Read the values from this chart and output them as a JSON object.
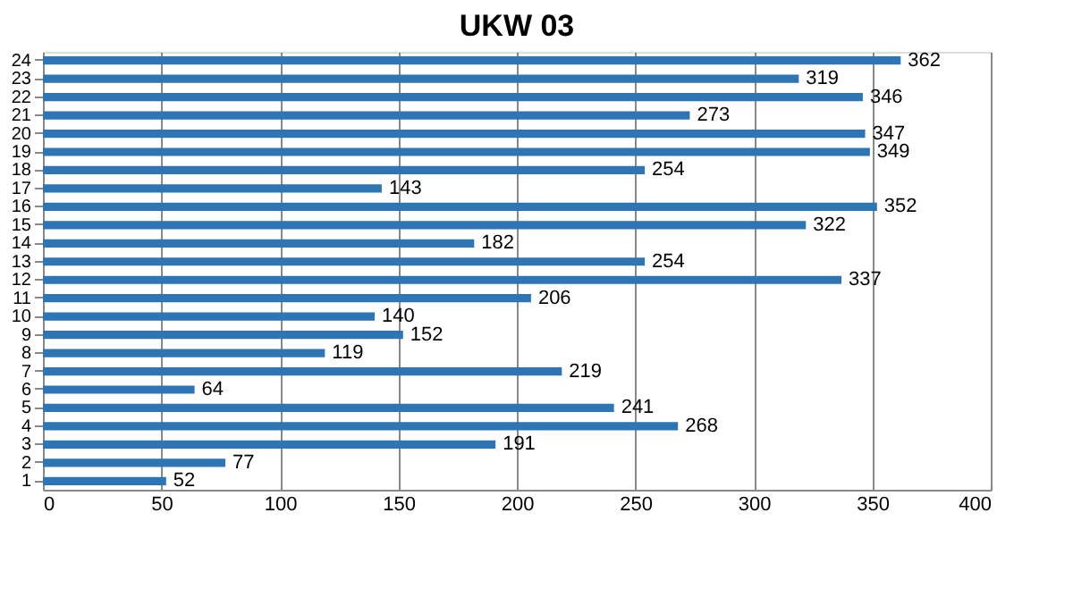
{
  "chart_data": {
    "type": "bar",
    "orientation": "horizontal",
    "title": "UKW 03",
    "categories": [
      "24",
      "23",
      "22",
      "21",
      "20",
      "19",
      "18",
      "17",
      "16",
      "15",
      "14",
      "13",
      "12",
      "11",
      "10",
      "9",
      "8",
      "7",
      "6",
      "5",
      "4",
      "3",
      "2",
      "1"
    ],
    "values": [
      362,
      319,
      346,
      273,
      347,
      349,
      254,
      143,
      352,
      322,
      182,
      254,
      337,
      206,
      140,
      152,
      119,
      219,
      64,
      241,
      268,
      191,
      77,
      52
    ],
    "color": "#2e75b6",
    "xlim": [
      0,
      400
    ],
    "xticks": [
      0,
      50,
      100,
      150,
      200,
      250,
      300,
      350,
      400
    ],
    "grid": "x",
    "data_labels": true
  }
}
